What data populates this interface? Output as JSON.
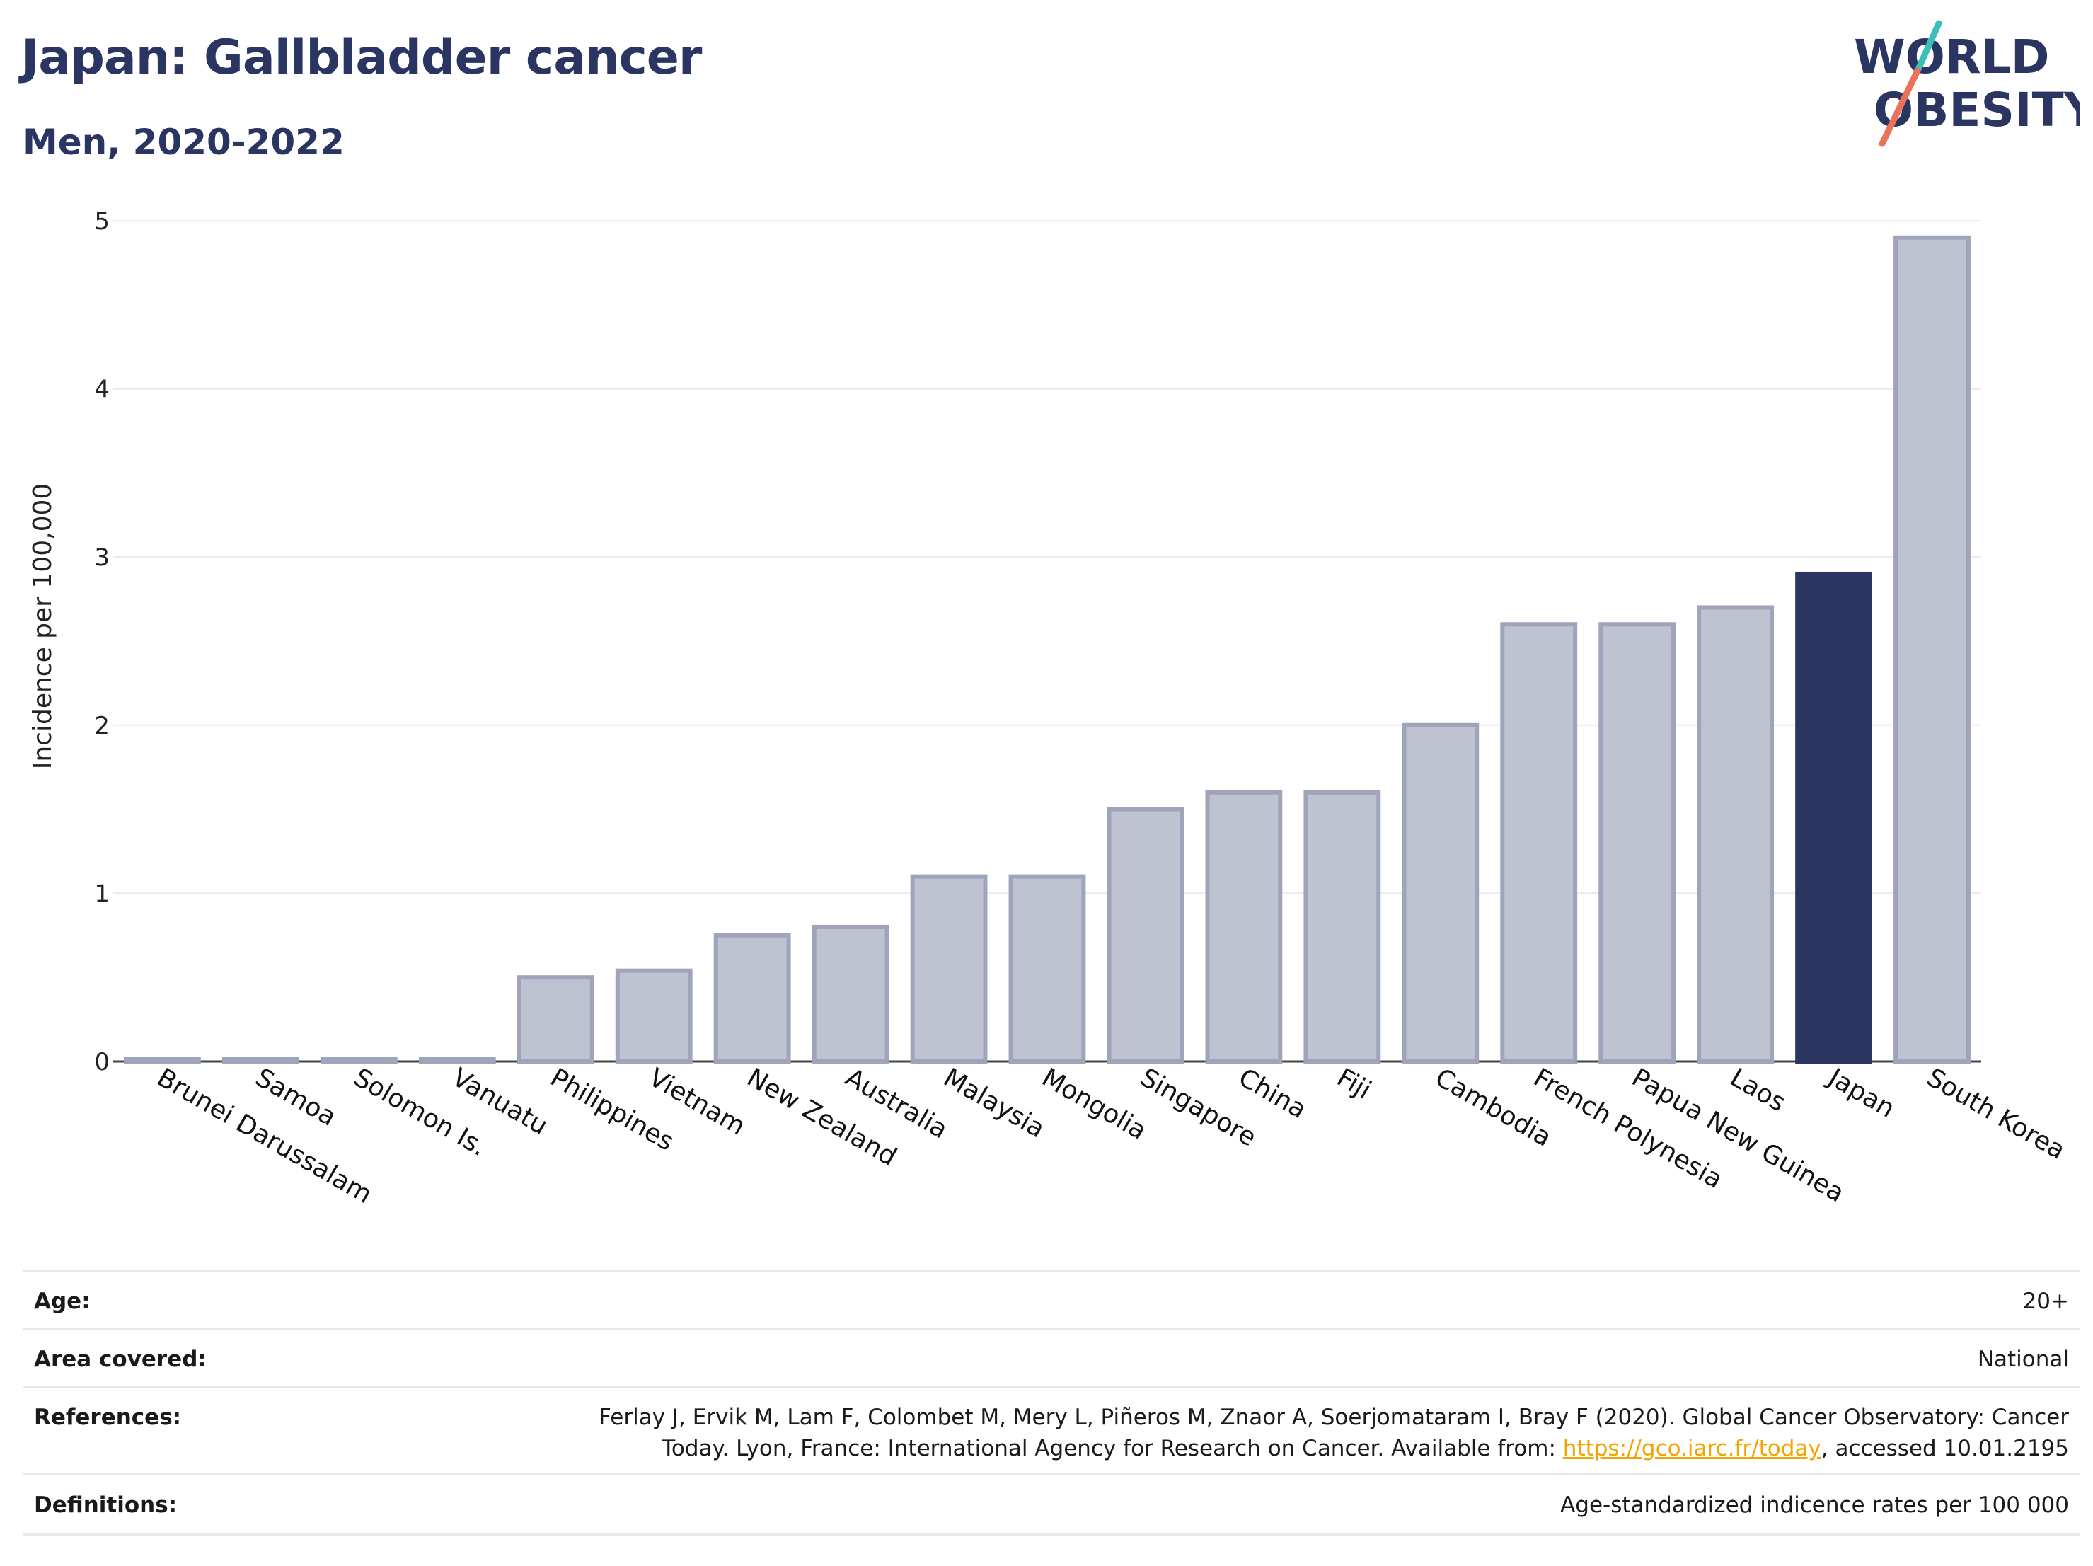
{
  "header": {
    "title": "Japan: Gallbladder cancer",
    "subtitle": "Men, 2020-2022"
  },
  "logo": {
    "line1": "WORLD",
    "line2": "OBESITY"
  },
  "colors": {
    "title": "#2b3561",
    "highlight_bar": "#2b3561",
    "other_bar_fill": "#bfc2d0",
    "other_bar_stroke": "#9fa4bb",
    "logo_teal": "#3dbfb8",
    "logo_coral": "#e8735a",
    "link": "#f0a500"
  },
  "chart_data": {
    "type": "bar",
    "ylabel": "Incidence per 100,000",
    "xlabel": "",
    "ylim": [
      0,
      5
    ],
    "yticks": [
      0,
      1,
      2,
      3,
      4,
      5
    ],
    "grid": true,
    "highlight": "Japan",
    "categories": [
      "Brunei Darussalam",
      "Samoa",
      "Solomon Is.",
      "Vanuatu",
      "Philippines",
      "Vietnam",
      "New Zealand",
      "Australia",
      "Malaysia",
      "Mongolia",
      "Singapore",
      "China",
      "Fiji",
      "Cambodia",
      "French Polynesia",
      "Papua New Guinea",
      "Laos",
      "Japan",
      "South Korea"
    ],
    "values": [
      0,
      0,
      0,
      0,
      0.5,
      0.54,
      0.75,
      0.8,
      1.1,
      1.1,
      1.5,
      1.6,
      1.6,
      2.0,
      2.6,
      2.6,
      2.7,
      2.9,
      4.9
    ]
  },
  "info": {
    "age_label": "Age:",
    "age_value": "20+",
    "area_label": "Area covered:",
    "area_value": "National",
    "references_label": "References:",
    "references_line1": "Ferlay J, Ervik M, Lam F, Colombet M, Mery L, Piñeros M, Znaor A, Soerjomataram I, Bray F (2020). Global Cancer Observatory: Cancer",
    "references_line2_pre": "Today. Lyon, France: International Agency for Research on Cancer. Available from: ",
    "references_link": "https://gco.iarc.fr/today",
    "references_line2_post": ", accessed 10.01.2195",
    "definitions_label": "Definitions:",
    "definitions_value": "Age-standardized indicence rates per 100 000"
  }
}
